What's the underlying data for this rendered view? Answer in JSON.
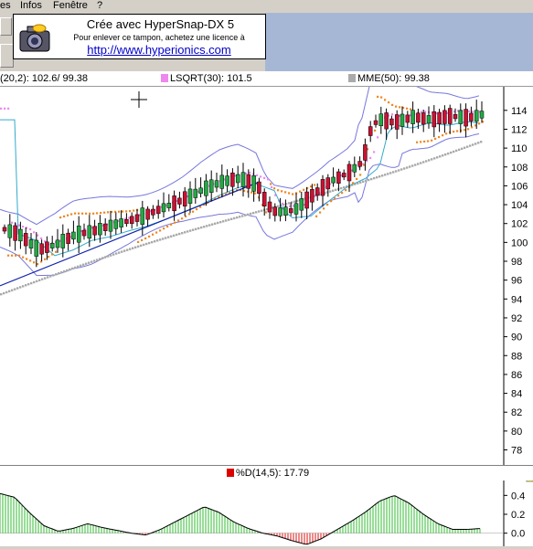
{
  "menu": {
    "items": [
      {
        "label": "es"
      },
      {
        "label": "Infos"
      },
      {
        "label": "Fenêtre"
      },
      {
        "label": "?"
      }
    ]
  },
  "stamp": {
    "title": "Crée avec HyperSnap-DX 5",
    "subtitle": "Pour enlever ce tampon, achetez une licence à",
    "url": "http://www.hyperionics.com"
  },
  "legend": {
    "items": [
      {
        "label": "(20,2): 102.6/ 99.38",
        "color": ""
      },
      {
        "label": "LSQRT(30): 101.5",
        "color": "#ee88ee"
      },
      {
        "label": "MME(50): 99.38",
        "color": "#aaaaaa"
      }
    ]
  },
  "osc_legend": {
    "label": "%D(14,5): 17.79",
    "color": "#dd0000"
  },
  "colors": {
    "up_candle": "#22aa44",
    "down_candle": "#cc1133",
    "bollinger": "#7777dd",
    "lsqrt": "#ee88ee",
    "mme": "#aaaaaa",
    "sar": "#ee8822",
    "trendline": "#1122aa",
    "ma_fast": "#33aacc"
  },
  "chart_data": [
    {
      "type": "candlestick",
      "title": "",
      "ylim": [
        76.5,
        116.5
      ],
      "yticks": [
        "114",
        "112",
        "110",
        "108",
        "106",
        "104",
        "102",
        "100",
        "98",
        "96",
        "94",
        "92",
        "90",
        "88",
        "86",
        "84",
        "82",
        "80",
        "78"
      ],
      "ohlc_sample": [
        [
          103.5,
          104.2,
          101.5,
          102.0
        ],
        [
          101.0,
          102.5,
          100.0,
          101.8
        ],
        [
          100.5,
          101.2,
          98.8,
          99.5
        ],
        [
          99.0,
          100.8,
          98.2,
          100.5
        ],
        [
          100.5,
          101.5,
          99.5,
          100.8
        ],
        [
          101.0,
          102.6,
          100.6,
          102.2
        ],
        [
          102.0,
          103.8,
          101.5,
          103.2
        ],
        [
          103.0,
          104.2,
          102.5,
          103.8
        ],
        [
          103.8,
          105.2,
          103.3,
          104.8
        ],
        [
          104.6,
          106.3,
          104.1,
          105.9
        ],
        [
          105.8,
          107.2,
          105.3,
          106.9
        ],
        [
          106.5,
          107.0,
          105.5,
          105.8
        ],
        [
          105.5,
          105.9,
          102.0,
          102.6
        ],
        [
          102.8,
          104.5,
          102.0,
          104.2
        ],
        [
          104.2,
          106.5,
          103.8,
          106.2
        ],
        [
          106.5,
          108.5,
          106.0,
          108.2
        ],
        [
          108.5,
          111.0,
          107.8,
          110.8
        ],
        [
          111.0,
          115.4,
          110.0,
          113.5
        ],
        [
          113.0,
          114.5,
          111.8,
          112.5
        ],
        [
          112.8,
          114.0,
          111.5,
          113.6
        ],
        [
          113.2,
          114.2,
          112.5,
          113.8
        ]
      ],
      "overlays": [
        "Bollinger(20,2)",
        "LSQRT(30)",
        "MME(50)",
        "SAR",
        "trendline"
      ]
    },
    {
      "type": "bar",
      "title": "%D(14,5)",
      "ylim": [
        -0.1,
        0.5
      ],
      "yticks": [
        "0.4",
        "0.2",
        "0.0"
      ],
      "values": [
        0.42,
        0.38,
        0.22,
        0.08,
        0.02,
        0.05,
        0.1,
        0.06,
        0.03,
        0.0,
        -0.02,
        0.04,
        0.12,
        0.2,
        0.28,
        0.22,
        0.12,
        0.05,
        0.0,
        -0.03,
        -0.08,
        -0.12,
        -0.06,
        0.03,
        0.12,
        0.22,
        0.34,
        0.4,
        0.32,
        0.2,
        0.1,
        0.04,
        0.04,
        0.05
      ]
    }
  ]
}
